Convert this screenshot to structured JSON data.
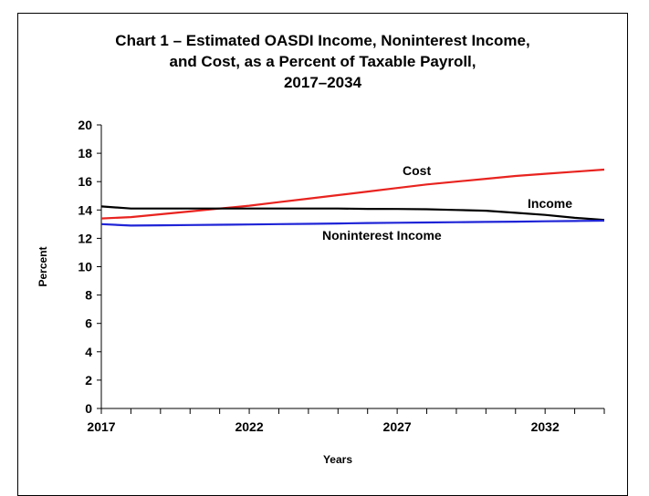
{
  "chart_data": {
    "type": "line",
    "title": [
      "Chart 1 – Estimated OASDI Income, Noninterest Income,",
      "and Cost, as a Percent of Taxable Payroll,",
      "2017–2034"
    ],
    "xlabel": "Years",
    "ylabel": "Percent",
    "xlim": [
      2017,
      2034
    ],
    "ylim": [
      0,
      20
    ],
    "x_tick_labels": [
      "2017",
      "2022",
      "2027",
      "2032"
    ],
    "y_tick_labels": [
      "0",
      "2",
      "4",
      "6",
      "8",
      "10",
      "12",
      "14",
      "16",
      "18",
      "20"
    ],
    "grid": false,
    "legend": "none (series labeled directly on chart)",
    "x": [
      2017,
      2018,
      2019,
      2020,
      2021,
      2022,
      2023,
      2024,
      2025,
      2026,
      2027,
      2028,
      2029,
      2030,
      2031,
      2032,
      2033,
      2034
    ],
    "series": [
      {
        "name": "Cost",
        "color": "#e8231f",
        "values": [
          13.4,
          13.5,
          13.7,
          13.9,
          14.1,
          14.3,
          14.55,
          14.8,
          15.05,
          15.3,
          15.55,
          15.8,
          16.0,
          16.2,
          16.4,
          16.55,
          16.7,
          16.85
        ]
      },
      {
        "name": "Income",
        "color": "#000000",
        "values": [
          14.25,
          14.1,
          14.1,
          14.1,
          14.1,
          14.1,
          14.1,
          14.1,
          14.1,
          14.08,
          14.07,
          14.05,
          14.0,
          13.95,
          13.8,
          13.65,
          13.45,
          13.3
        ]
      },
      {
        "name": "Noninterest Income",
        "color": "#1f24d6",
        "values": [
          13.0,
          12.9,
          12.92,
          12.94,
          12.96,
          12.98,
          13.0,
          13.02,
          13.05,
          13.08,
          13.1,
          13.12,
          13.14,
          13.16,
          13.18,
          13.2,
          13.22,
          13.25
        ]
      }
    ],
    "annotations": [
      {
        "series": "Cost",
        "text": "Cost"
      },
      {
        "series": "Income",
        "text": "Income"
      },
      {
        "series": "Noninterest Income",
        "text": "Noninterest Income"
      }
    ]
  }
}
